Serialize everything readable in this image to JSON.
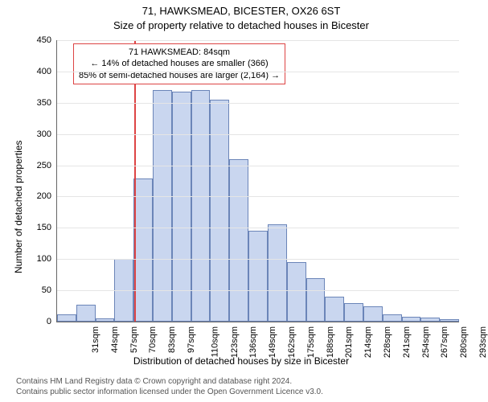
{
  "title_line1": "71, HAWKSMEAD, BICESTER, OX26 6ST",
  "title_line2": "Size of property relative to detached houses in Bicester",
  "ylabel": "Number of detached properties",
  "xcaption": "Distribution of detached houses by size in Bicester",
  "footer_line1": "Contains HM Land Registry data © Crown copyright and database right 2024.",
  "footer_line2": "Contains public sector information licensed under the Open Government Licence v3.0.",
  "annotation": {
    "line1": "71 HAWKSMEAD: 84sqm",
    "line2": "← 14% of detached houses are smaller (366)",
    "line3": "85% of semi-detached houses are larger (2,164) →"
  },
  "chart": {
    "type": "histogram",
    "ylim": [
      0,
      450
    ],
    "ytick_step": 50,
    "x_labels": [
      "31sqm",
      "44sqm",
      "57sqm",
      "70sqm",
      "83sqm",
      "97sqm",
      "110sqm",
      "123sqm",
      "136sqm",
      "149sqm",
      "162sqm",
      "175sqm",
      "188sqm",
      "201sqm",
      "214sqm",
      "228sqm",
      "241sqm",
      "254sqm",
      "267sqm",
      "280sqm",
      "293sqm"
    ],
    "values": [
      12,
      27,
      5,
      100,
      229,
      370,
      368,
      370,
      355,
      260,
      145,
      155,
      95,
      70,
      40,
      30,
      25,
      12,
      8,
      6,
      4
    ],
    "bar_fill": "#c9d6ef",
    "bar_border": "#6b85b8",
    "grid_color": "#e5e5e5",
    "axis_color": "#666666",
    "marker_color": "#dd4444",
    "marker_x_index": 4,
    "background": "#ffffff",
    "title_fontsize": 13,
    "label_fontsize": 12,
    "tick_fontsize": 11
  }
}
